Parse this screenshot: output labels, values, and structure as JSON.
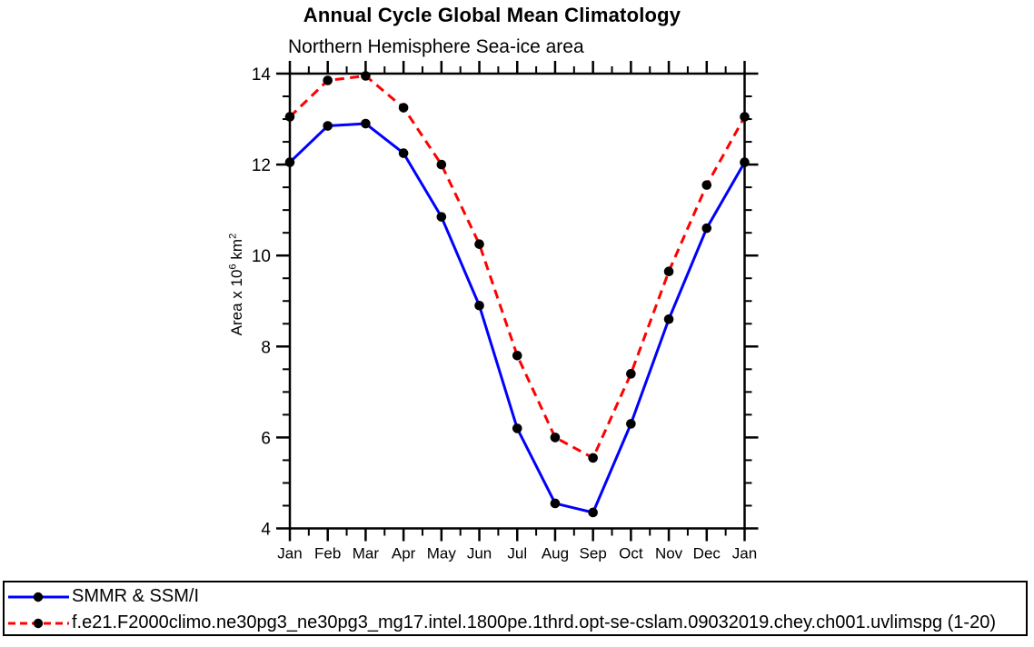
{
  "chart_data": {
    "type": "line",
    "title": "Annual Cycle Global Mean Climatology",
    "subtitle": "Northern Hemisphere Sea-ice area",
    "ylabel": {
      "pre": "Area x 10",
      "sup1": "6",
      "mid": " km",
      "sup2": "2"
    },
    "categories": [
      "Jan",
      "Feb",
      "Mar",
      "Apr",
      "May",
      "Jun",
      "Jul",
      "Aug",
      "Sep",
      "Oct",
      "Nov",
      "Dec",
      "Jan"
    ],
    "ylim": [
      4,
      14
    ],
    "ytick_major": [
      4,
      6,
      8,
      10,
      12,
      14
    ],
    "ytick_minor_step": 0.5,
    "grid": false,
    "legend_position": "bottom-box",
    "axis_color": "#000000",
    "marker_shape": "filled-circle",
    "series": [
      {
        "name": "SMMR & SSM/I",
        "color": "#0000ff",
        "style": "solid",
        "marker": "circle",
        "marker_color": "#000000",
        "values": [
          12.05,
          12.85,
          12.9,
          12.25,
          10.85,
          8.9,
          6.2,
          4.55,
          4.35,
          6.3,
          8.6,
          10.6,
          12.05
        ]
      },
      {
        "name": "f.e21.F2000climo.ne30pg3_ne30pg3_mg17.intel.1800pe.1thrd.opt-se-cslam.09032019.chey.ch001.uvlimspg (1-20)",
        "color": "#ff0000",
        "style": "dashed",
        "marker": "circle",
        "marker_color": "#000000",
        "values": [
          13.05,
          13.85,
          13.95,
          13.25,
          12.0,
          10.25,
          7.8,
          6.0,
          5.55,
          7.4,
          9.65,
          11.55,
          13.05
        ]
      }
    ]
  }
}
